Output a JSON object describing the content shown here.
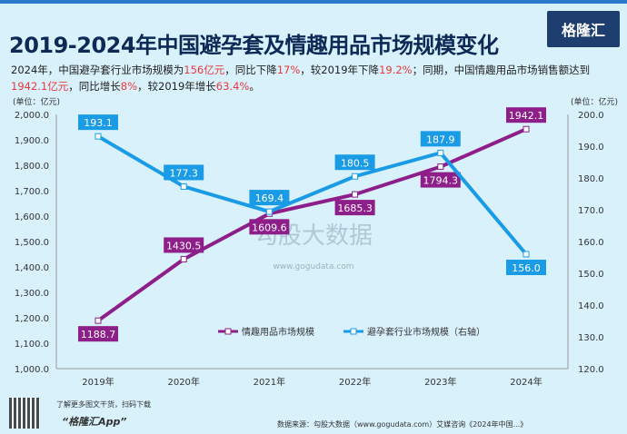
{
  "header": {
    "title": "2019-2024年中国避孕套及情趣用品市场规模变化",
    "logo": "格隆汇"
  },
  "summary": [
    {
      "t": "2024年，中国避孕套行业市场规模为"
    },
    {
      "t": "156亿元",
      "hl": true
    },
    {
      "t": "，同比下降"
    },
    {
      "t": "17%",
      "hl": true
    },
    {
      "t": "，较2019年下降"
    },
    {
      "t": "19.2%",
      "hl": true
    },
    {
      "t": "；同期，中国情趣用品市场销售额达到"
    },
    {
      "t": "1942.1亿元",
      "hl": true
    },
    {
      "t": "，同比增长"
    },
    {
      "t": "8%",
      "hl": true
    },
    {
      "t": "，较2019年增长"
    },
    {
      "t": "63.4%",
      "hl": true
    },
    {
      "t": "。"
    }
  ],
  "footer": {
    "qr_text": "了解更多图文干货，扫码下载",
    "app": "“格隆汇App”",
    "source": "数据来源：勾股大数据（www.gogudata.com）艾媒咨询《2024年中国...》",
    "watermark": "勾股大数据",
    "watermark_url": "www.gogudata.com"
  },
  "chart_data": {
    "type": "line",
    "categories": [
      "2019年",
      "2020年",
      "2021年",
      "2022年",
      "2023年",
      "2024年"
    ],
    "left_axis": {
      "label": "(单位：亿元)",
      "ylim": [
        1000,
        2000
      ],
      "ticks": [
        "1,000.0",
        "1,100.0",
        "1,200.0",
        "1,300.0",
        "1,400.0",
        "1,500.0",
        "1,600.0",
        "1,700.0",
        "1,800.0",
        "1,900.0",
        "2,000.0"
      ]
    },
    "right_axis": {
      "label": "(单位：亿元)",
      "ylim": [
        120,
        200
      ],
      "ticks": [
        "120.0",
        "130.0",
        "140.0",
        "150.0",
        "160.0",
        "170.0",
        "180.0",
        "190.0",
        "200.0"
      ]
    },
    "legend_position": "bottom-center",
    "series": [
      {
        "name": "情趣用品市场规模",
        "axis": "left",
        "color": "#8e1f8a",
        "values": [
          1188.7,
          1430.5,
          1609.6,
          1685.3,
          1794.3,
          1942.1
        ],
        "labels": [
          "1188.7",
          "1430.5",
          "1609.6",
          "1685.3",
          "1794.3",
          "1942.1"
        ]
      },
      {
        "name": "避孕套行业市场规模（右轴）",
        "axis": "right",
        "color": "#1a9be6",
        "values": [
          193.1,
          177.3,
          169.4,
          180.5,
          187.9,
          156.0
        ],
        "labels": [
          "193.1",
          "177.3",
          "169.4",
          "180.5",
          "187.9",
          "156.0"
        ]
      }
    ]
  }
}
